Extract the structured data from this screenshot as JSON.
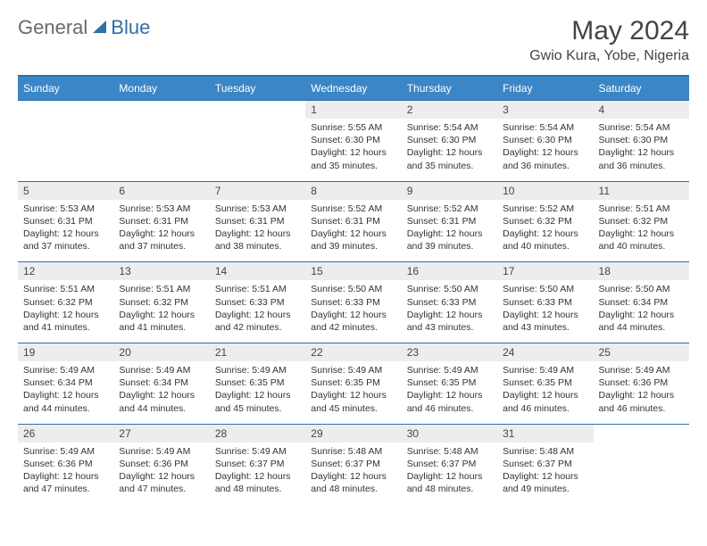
{
  "logo": {
    "general": "General",
    "blue": "Blue"
  },
  "title": "May 2024",
  "location": "Gwio Kura, Yobe, Nigeria",
  "colors": {
    "header_bg": "#3b86c6",
    "header_border": "#2f6fa8",
    "daynum_bg": "#ededed",
    "text": "#333333"
  },
  "day_headers": [
    "Sunday",
    "Monday",
    "Tuesday",
    "Wednesday",
    "Thursday",
    "Friday",
    "Saturday"
  ],
  "weeks": [
    [
      null,
      null,
      null,
      {
        "n": "1",
        "sr": "5:55 AM",
        "ss": "6:30 PM",
        "dl": "12 hours and 35 minutes."
      },
      {
        "n": "2",
        "sr": "5:54 AM",
        "ss": "6:30 PM",
        "dl": "12 hours and 35 minutes."
      },
      {
        "n": "3",
        "sr": "5:54 AM",
        "ss": "6:30 PM",
        "dl": "12 hours and 36 minutes."
      },
      {
        "n": "4",
        "sr": "5:54 AM",
        "ss": "6:30 PM",
        "dl": "12 hours and 36 minutes."
      }
    ],
    [
      {
        "n": "5",
        "sr": "5:53 AM",
        "ss": "6:31 PM",
        "dl": "12 hours and 37 minutes."
      },
      {
        "n": "6",
        "sr": "5:53 AM",
        "ss": "6:31 PM",
        "dl": "12 hours and 37 minutes."
      },
      {
        "n": "7",
        "sr": "5:53 AM",
        "ss": "6:31 PM",
        "dl": "12 hours and 38 minutes."
      },
      {
        "n": "8",
        "sr": "5:52 AM",
        "ss": "6:31 PM",
        "dl": "12 hours and 39 minutes."
      },
      {
        "n": "9",
        "sr": "5:52 AM",
        "ss": "6:31 PM",
        "dl": "12 hours and 39 minutes."
      },
      {
        "n": "10",
        "sr": "5:52 AM",
        "ss": "6:32 PM",
        "dl": "12 hours and 40 minutes."
      },
      {
        "n": "11",
        "sr": "5:51 AM",
        "ss": "6:32 PM",
        "dl": "12 hours and 40 minutes."
      }
    ],
    [
      {
        "n": "12",
        "sr": "5:51 AM",
        "ss": "6:32 PM",
        "dl": "12 hours and 41 minutes."
      },
      {
        "n": "13",
        "sr": "5:51 AM",
        "ss": "6:32 PM",
        "dl": "12 hours and 41 minutes."
      },
      {
        "n": "14",
        "sr": "5:51 AM",
        "ss": "6:33 PM",
        "dl": "12 hours and 42 minutes."
      },
      {
        "n": "15",
        "sr": "5:50 AM",
        "ss": "6:33 PM",
        "dl": "12 hours and 42 minutes."
      },
      {
        "n": "16",
        "sr": "5:50 AM",
        "ss": "6:33 PM",
        "dl": "12 hours and 43 minutes."
      },
      {
        "n": "17",
        "sr": "5:50 AM",
        "ss": "6:33 PM",
        "dl": "12 hours and 43 minutes."
      },
      {
        "n": "18",
        "sr": "5:50 AM",
        "ss": "6:34 PM",
        "dl": "12 hours and 44 minutes."
      }
    ],
    [
      {
        "n": "19",
        "sr": "5:49 AM",
        "ss": "6:34 PM",
        "dl": "12 hours and 44 minutes."
      },
      {
        "n": "20",
        "sr": "5:49 AM",
        "ss": "6:34 PM",
        "dl": "12 hours and 44 minutes."
      },
      {
        "n": "21",
        "sr": "5:49 AM",
        "ss": "6:35 PM",
        "dl": "12 hours and 45 minutes."
      },
      {
        "n": "22",
        "sr": "5:49 AM",
        "ss": "6:35 PM",
        "dl": "12 hours and 45 minutes."
      },
      {
        "n": "23",
        "sr": "5:49 AM",
        "ss": "6:35 PM",
        "dl": "12 hours and 46 minutes."
      },
      {
        "n": "24",
        "sr": "5:49 AM",
        "ss": "6:35 PM",
        "dl": "12 hours and 46 minutes."
      },
      {
        "n": "25",
        "sr": "5:49 AM",
        "ss": "6:36 PM",
        "dl": "12 hours and 46 minutes."
      }
    ],
    [
      {
        "n": "26",
        "sr": "5:49 AM",
        "ss": "6:36 PM",
        "dl": "12 hours and 47 minutes."
      },
      {
        "n": "27",
        "sr": "5:49 AM",
        "ss": "6:36 PM",
        "dl": "12 hours and 47 minutes."
      },
      {
        "n": "28",
        "sr": "5:49 AM",
        "ss": "6:37 PM",
        "dl": "12 hours and 48 minutes."
      },
      {
        "n": "29",
        "sr": "5:48 AM",
        "ss": "6:37 PM",
        "dl": "12 hours and 48 minutes."
      },
      {
        "n": "30",
        "sr": "5:48 AM",
        "ss": "6:37 PM",
        "dl": "12 hours and 48 minutes."
      },
      {
        "n": "31",
        "sr": "5:48 AM",
        "ss": "6:37 PM",
        "dl": "12 hours and 49 minutes."
      },
      null
    ]
  ]
}
